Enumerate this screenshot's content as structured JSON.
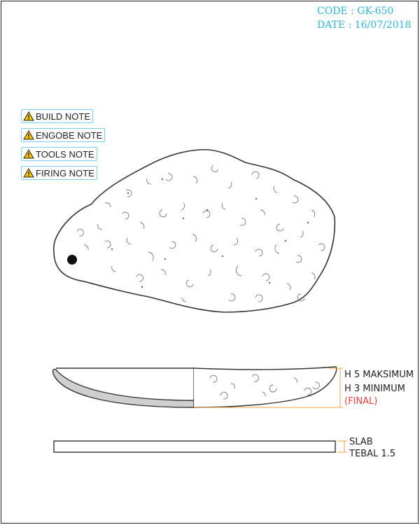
{
  "meta": {
    "code": "CODE : GK-650",
    "date": "DATE : 16/07/2018"
  },
  "notes": [
    {
      "label": "BUILD NOTE",
      "icon": "warning-icon"
    },
    {
      "label": "ENGOBE NOTE",
      "icon": "warning-icon"
    },
    {
      "label": "TOOLS NOTE",
      "icon": "warning-icon"
    },
    {
      "label": "FIRING NOTE",
      "icon": "warning-icon"
    }
  ],
  "dimensions": {
    "height_max": "H 5 MAKSIMUM",
    "height_min": "H 3 MINIMUM",
    "final": "(FINAL)",
    "slab": "SLAB",
    "thickness": "TEBAL 1.5"
  },
  "colors": {
    "accent": "#2fb4d6",
    "dimension": "#f0a040",
    "final": "#e0403f",
    "note_border": "#7dcff0",
    "warning": "#f5c400"
  }
}
